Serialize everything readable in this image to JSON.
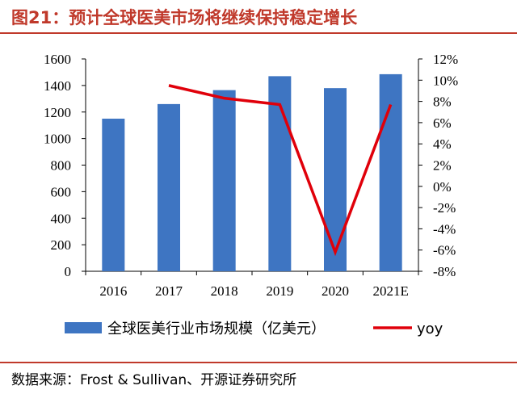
{
  "header": {
    "title": "图21：预计全球医美市场将继续保持稳定增长"
  },
  "footer": {
    "source": "数据来源：Frost & Sullivan、开源证券研究所"
  },
  "colors": {
    "bar": "#3e75c2",
    "line": "#e0000a",
    "accent": "#c0392b"
  },
  "chart_data": {
    "type": "bar",
    "title": "",
    "categories": [
      "2016",
      "2017",
      "2018",
      "2019",
      "2020",
      "2021E"
    ],
    "series": [
      {
        "name": "全球医美行业市场规模（亿美元）",
        "type": "bar",
        "axis": "left",
        "values": [
          1150,
          1260,
          1365,
          1470,
          1380,
          1485
        ]
      },
      {
        "name": "yoy",
        "type": "line",
        "axis": "right",
        "values": [
          null,
          9.5,
          8.3,
          7.7,
          -6.2,
          7.7
        ]
      }
    ],
    "y_left": {
      "range": [
        0,
        1600
      ],
      "ticks": [
        "0",
        "200",
        "400",
        "600",
        "800",
        "1000",
        "1200",
        "1400",
        "1600"
      ]
    },
    "y_right": {
      "range": [
        -8,
        12
      ],
      "ticks": [
        "-8%",
        "-6%",
        "-4%",
        "-2%",
        "0%",
        "2%",
        "4%",
        "6%",
        "8%",
        "10%",
        "12%"
      ]
    },
    "grid": false,
    "legend": "bottom"
  }
}
